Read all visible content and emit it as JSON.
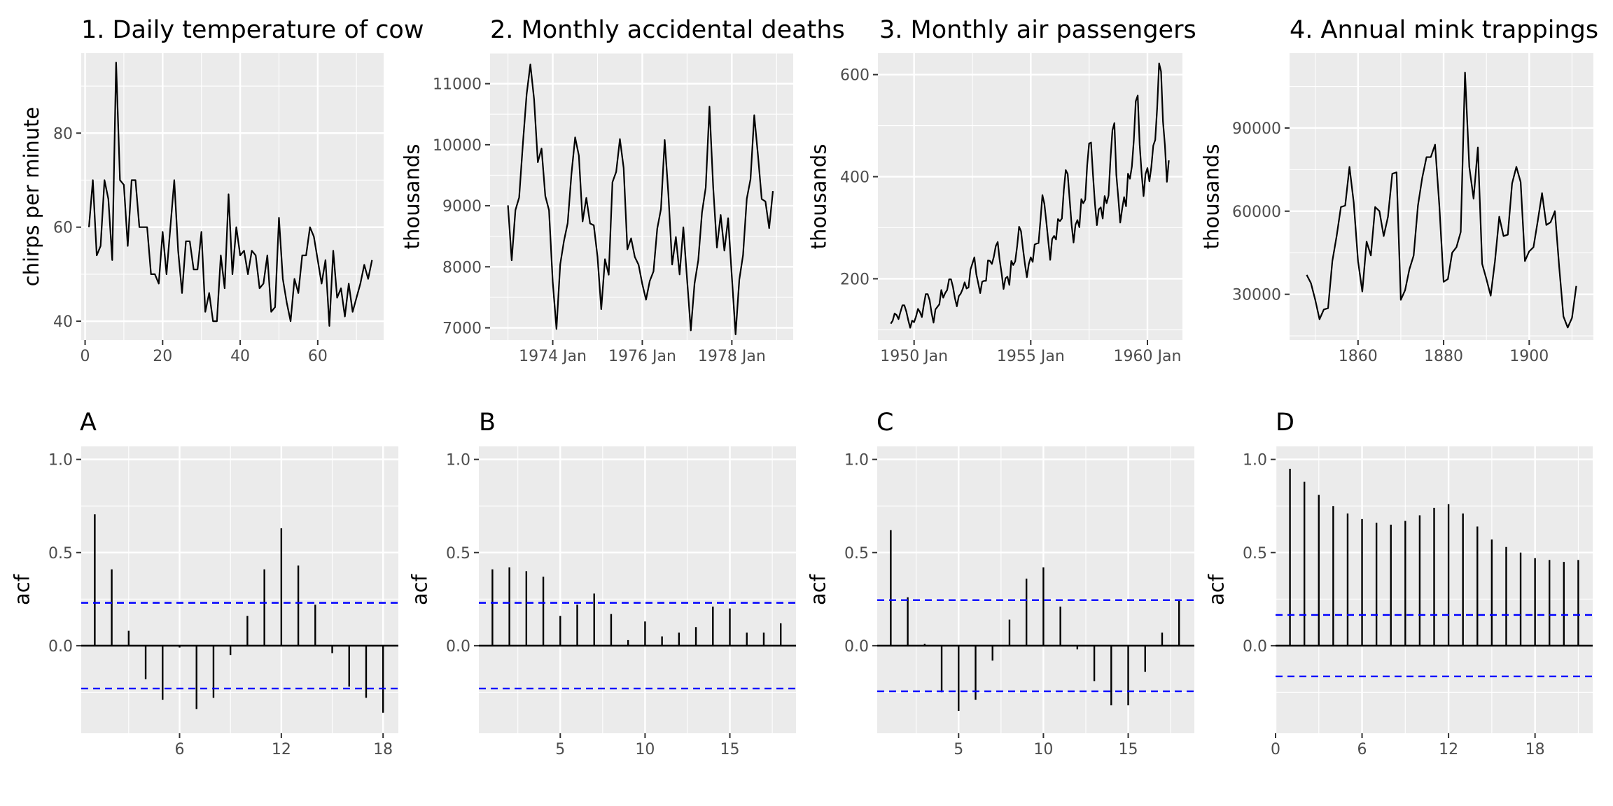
{
  "chart_data": [
    {
      "id": "p1",
      "type": "line",
      "title": "1. Daily temperature of cow",
      "xlabel": "",
      "ylabel": "chirps per minute",
      "x_start": 1,
      "x_step": 1,
      "xlim": [
        -1,
        77
      ],
      "ylim": [
        36,
        97
      ],
      "x_ticks": [
        0,
        20,
        40,
        60
      ],
      "x_tick_labels": [
        "0",
        "20",
        "40",
        "60"
      ],
      "y_ticks": [
        40,
        60,
        80
      ],
      "y_tick_labels": [
        "40",
        "60",
        "80"
      ],
      "values": [
        60,
        70,
        54,
        56,
        70,
        66,
        53,
        95,
        70,
        69,
        56,
        70,
        70,
        60,
        60,
        60,
        50,
        50,
        48,
        59,
        50,
        60,
        70,
        55,
        46,
        57,
        57,
        51,
        51,
        59,
        42,
        46,
        40,
        40,
        54,
        47,
        67,
        50,
        60,
        54,
        55,
        50,
        55,
        54,
        47,
        48,
        54,
        42,
        43,
        62,
        49,
        44,
        40,
        49,
        46,
        54,
        54,
        60,
        58,
        53,
        48,
        53,
        39,
        55,
        45,
        47,
        41,
        48,
        42,
        45,
        48,
        52,
        49,
        53
      ]
    },
    {
      "id": "p2",
      "type": "line",
      "title": "2. Monthly accidental deaths",
      "xlabel": "",
      "ylabel": "thousands",
      "x_start": 1973.0,
      "x_step": 0.0833333,
      "xlim": [
        1972.6,
        1979.37
      ],
      "ylim": [
        6800,
        11500
      ],
      "x_ticks": [
        1974,
        1976,
        1978
      ],
      "x_tick_labels": [
        "1974 Jan",
        "1976 Jan",
        "1978 Jan"
      ],
      "y_ticks": [
        7000,
        8000,
        9000,
        10000,
        11000
      ],
      "y_tick_labels": [
        "7000",
        "8000",
        "9000",
        "10000",
        "11000"
      ],
      "values": [
        9007,
        8106,
        8928,
        9137,
        10017,
        10826,
        11317,
        10744,
        9713,
        9938,
        9161,
        8927,
        7750,
        6981,
        8038,
        8422,
        8714,
        9512,
        10120,
        9823,
        8743,
        9129,
        8710,
        8680,
        8162,
        7306,
        8124,
        7870,
        9387,
        9556,
        10093,
        9620,
        8285,
        8466,
        8160,
        8034,
        7717,
        7461,
        7767,
        7925,
        8623,
        8945,
        10078,
        9179,
        8037,
        8488,
        7874,
        8647,
        7792,
        6957,
        7726,
        8106,
        8890,
        9299,
        10625,
        9302,
        8314,
        8850,
        8265,
        8796,
        7836,
        6892,
        7791,
        8192,
        9115,
        9434,
        10484,
        9827,
        9110,
        9070,
        8633,
        9240
      ]
    },
    {
      "id": "p3",
      "type": "line",
      "title": "3. Monthly air passengers",
      "xlabel": "",
      "ylabel": "thousands",
      "x_start": 1949.0,
      "x_step": 0.0833333,
      "xlim": [
        1948.45,
        1961.5
      ],
      "ylim": [
        80,
        642
      ],
      "x_ticks": [
        1950,
        1955,
        1960
      ],
      "x_tick_labels": [
        "1950 Jan",
        "1955 Jan",
        "1960 Jan"
      ],
      "y_ticks": [
        200,
        400,
        600
      ],
      "y_tick_labels": [
        "200",
        "400",
        "600"
      ],
      "values": [
        112,
        118,
        132,
        129,
        121,
        135,
        148,
        148,
        136,
        119,
        104,
        118,
        115,
        126,
        141,
        135,
        125,
        149,
        170,
        170,
        158,
        133,
        114,
        140,
        145,
        150,
        178,
        163,
        172,
        178,
        199,
        199,
        184,
        162,
        146,
        166,
        171,
        180,
        193,
        181,
        183,
        218,
        230,
        242,
        209,
        191,
        172,
        194,
        196,
        196,
        236,
        235,
        229,
        243,
        264,
        272,
        237,
        211,
        180,
        201,
        204,
        188,
        235,
        227,
        234,
        264,
        302,
        293,
        259,
        229,
        203,
        229,
        242,
        233,
        267,
        269,
        270,
        315,
        364,
        347,
        312,
        274,
        237,
        278,
        284,
        277,
        317,
        313,
        318,
        374,
        413,
        405,
        355,
        306,
        271,
        306,
        315,
        301,
        356,
        348,
        355,
        422,
        465,
        467,
        404,
        347,
        305,
        336,
        340,
        318,
        362,
        348,
        363,
        435,
        491,
        505,
        404,
        359,
        310,
        337,
        360,
        342,
        406,
        396,
        420,
        472,
        548,
        559,
        463,
        407,
        362,
        405,
        417,
        391,
        419,
        461,
        472,
        535,
        622,
        606,
        508,
        461,
        390,
        432
      ]
    },
    {
      "id": "p4",
      "type": "line",
      "title": "4. Annual mink trappings",
      "xlabel": "",
      "ylabel": "thousands",
      "x_start": 1848,
      "x_step": 1,
      "xlim": [
        1844.0,
        1915.0
      ],
      "ylim": [
        13500,
        117000
      ],
      "x_ticks": [
        1860,
        1880,
        1900
      ],
      "x_tick_labels": [
        "1860",
        "1880",
        "1900"
      ],
      "y_ticks": [
        30000,
        60000,
        90000
      ],
      "y_tick_labels": [
        "30000",
        "60000",
        "90000"
      ],
      "values": [
        37000,
        34000,
        28000,
        21000,
        24500,
        25000,
        42000,
        51000,
        61500,
        62000,
        76000,
        63000,
        42000,
        31000,
        49000,
        44000,
        61500,
        60000,
        51000,
        58000,
        73500,
        74000,
        28000,
        31500,
        39000,
        44000,
        62000,
        72000,
        79500,
        79500,
        84000,
        62000,
        34500,
        35500,
        45000,
        47000,
        52500,
        110000,
        76000,
        64500,
        83000,
        41000,
        35500,
        29500,
        42000,
        58000,
        51000,
        51500,
        70000,
        76000,
        70500,
        42000,
        45500,
        47000,
        56500,
        66500,
        55000,
        56000,
        60000,
        40000,
        22000,
        18000,
        21500,
        33000
      ]
    },
    {
      "id": "pA",
      "type": "bar",
      "title": "A",
      "xlabel": "",
      "ylabel": "acf",
      "lags": [
        1,
        2,
        3,
        4,
        5,
        6,
        7,
        8,
        9,
        10,
        11,
        12,
        13,
        14,
        15,
        16,
        17,
        18
      ],
      "values": [
        0.705,
        0.41,
        0.08,
        -0.18,
        -0.29,
        -0.01,
        -0.34,
        -0.28,
        -0.05,
        0.16,
        0.41,
        0.63,
        0.43,
        0.22,
        -0.04,
        -0.22,
        -0.28,
        -0.36
      ],
      "ci": 0.23,
      "xlim": [
        0.2,
        18.9
      ],
      "ylim": [
        -0.47,
        1.07
      ],
      "x_ticks": [
        6,
        12,
        18
      ],
      "x_tick_labels": [
        "6",
        "12",
        "18"
      ],
      "y_ticks": [
        0.0,
        0.5,
        1.0
      ],
      "y_tick_labels": [
        "0.0",
        "0.5",
        "1.0"
      ]
    },
    {
      "id": "pB",
      "type": "bar",
      "title": "B",
      "xlabel": "",
      "ylabel": "acf",
      "lags": [
        1,
        2,
        3,
        4,
        5,
        6,
        7,
        8,
        9,
        10,
        11,
        12,
        13,
        14,
        15,
        16,
        17,
        18
      ],
      "values": [
        0.41,
        0.42,
        0.4,
        0.37,
        0.16,
        0.22,
        0.28,
        0.17,
        0.03,
        0.13,
        0.05,
        0.07,
        0.1,
        0.21,
        0.2,
        0.07,
        0.07,
        0.12
      ],
      "ci": 0.23,
      "xlim": [
        0.2,
        18.9
      ],
      "ylim": [
        -0.47,
        1.07
      ],
      "x_ticks": [
        5,
        10,
        15
      ],
      "x_tick_labels": [
        "5",
        "10",
        "15"
      ],
      "y_ticks": [
        0.0,
        0.5,
        1.0
      ],
      "y_tick_labels": [
        "0.0",
        "0.5",
        "1.0"
      ]
    },
    {
      "id": "pC",
      "type": "bar",
      "title": "C",
      "xlabel": "",
      "ylabel": "acf",
      "lags": [
        1,
        2,
        3,
        4,
        5,
        6,
        7,
        8,
        9,
        10,
        11,
        12,
        13,
        14,
        15,
        16,
        17,
        18
      ],
      "values": [
        0.62,
        0.26,
        0.01,
        -0.25,
        -0.35,
        -0.29,
        -0.08,
        0.14,
        0.36,
        0.42,
        0.21,
        -0.02,
        -0.19,
        -0.32,
        -0.32,
        -0.14,
        0.07,
        0.24
      ],
      "ci": 0.245,
      "xlim": [
        0.2,
        18.9
      ],
      "ylim": [
        -0.47,
        1.07
      ],
      "x_ticks": [
        5,
        10,
        15
      ],
      "x_tick_labels": [
        "5",
        "10",
        "15"
      ],
      "y_ticks": [
        0.0,
        0.5,
        1.0
      ],
      "y_tick_labels": [
        "0.0",
        "0.5",
        "1.0"
      ]
    },
    {
      "id": "pD",
      "type": "bar",
      "title": "D",
      "xlabel": "",
      "ylabel": "acf",
      "lags": [
        1,
        2,
        3,
        4,
        5,
        6,
        7,
        8,
        9,
        10,
        11,
        12,
        13,
        14,
        15,
        16,
        17,
        18,
        19,
        20,
        21
      ],
      "values": [
        0.95,
        0.88,
        0.81,
        0.75,
        0.71,
        0.68,
        0.66,
        0.65,
        0.67,
        0.7,
        0.74,
        0.76,
        0.71,
        0.64,
        0.57,
        0.53,
        0.5,
        0.47,
        0.46,
        0.45,
        0.46
      ],
      "ci": 0.165,
      "xlim": [
        0.0,
        22.0
      ],
      "ylim": [
        -0.47,
        1.07
      ],
      "x_ticks": [
        0,
        6,
        12,
        18
      ],
      "x_tick_labels": [
        "0",
        "6",
        "12",
        "18"
      ],
      "y_ticks": [
        0.0,
        0.5,
        1.0
      ],
      "y_tick_labels": [
        "0.0",
        "0.5",
        "1.0"
      ]
    }
  ],
  "colors": {
    "panel": "#ebebeb",
    "grid": "#ffffff",
    "line": "#000000",
    "ci": "#0000ff",
    "tick_text": "#4d4d4d"
  }
}
